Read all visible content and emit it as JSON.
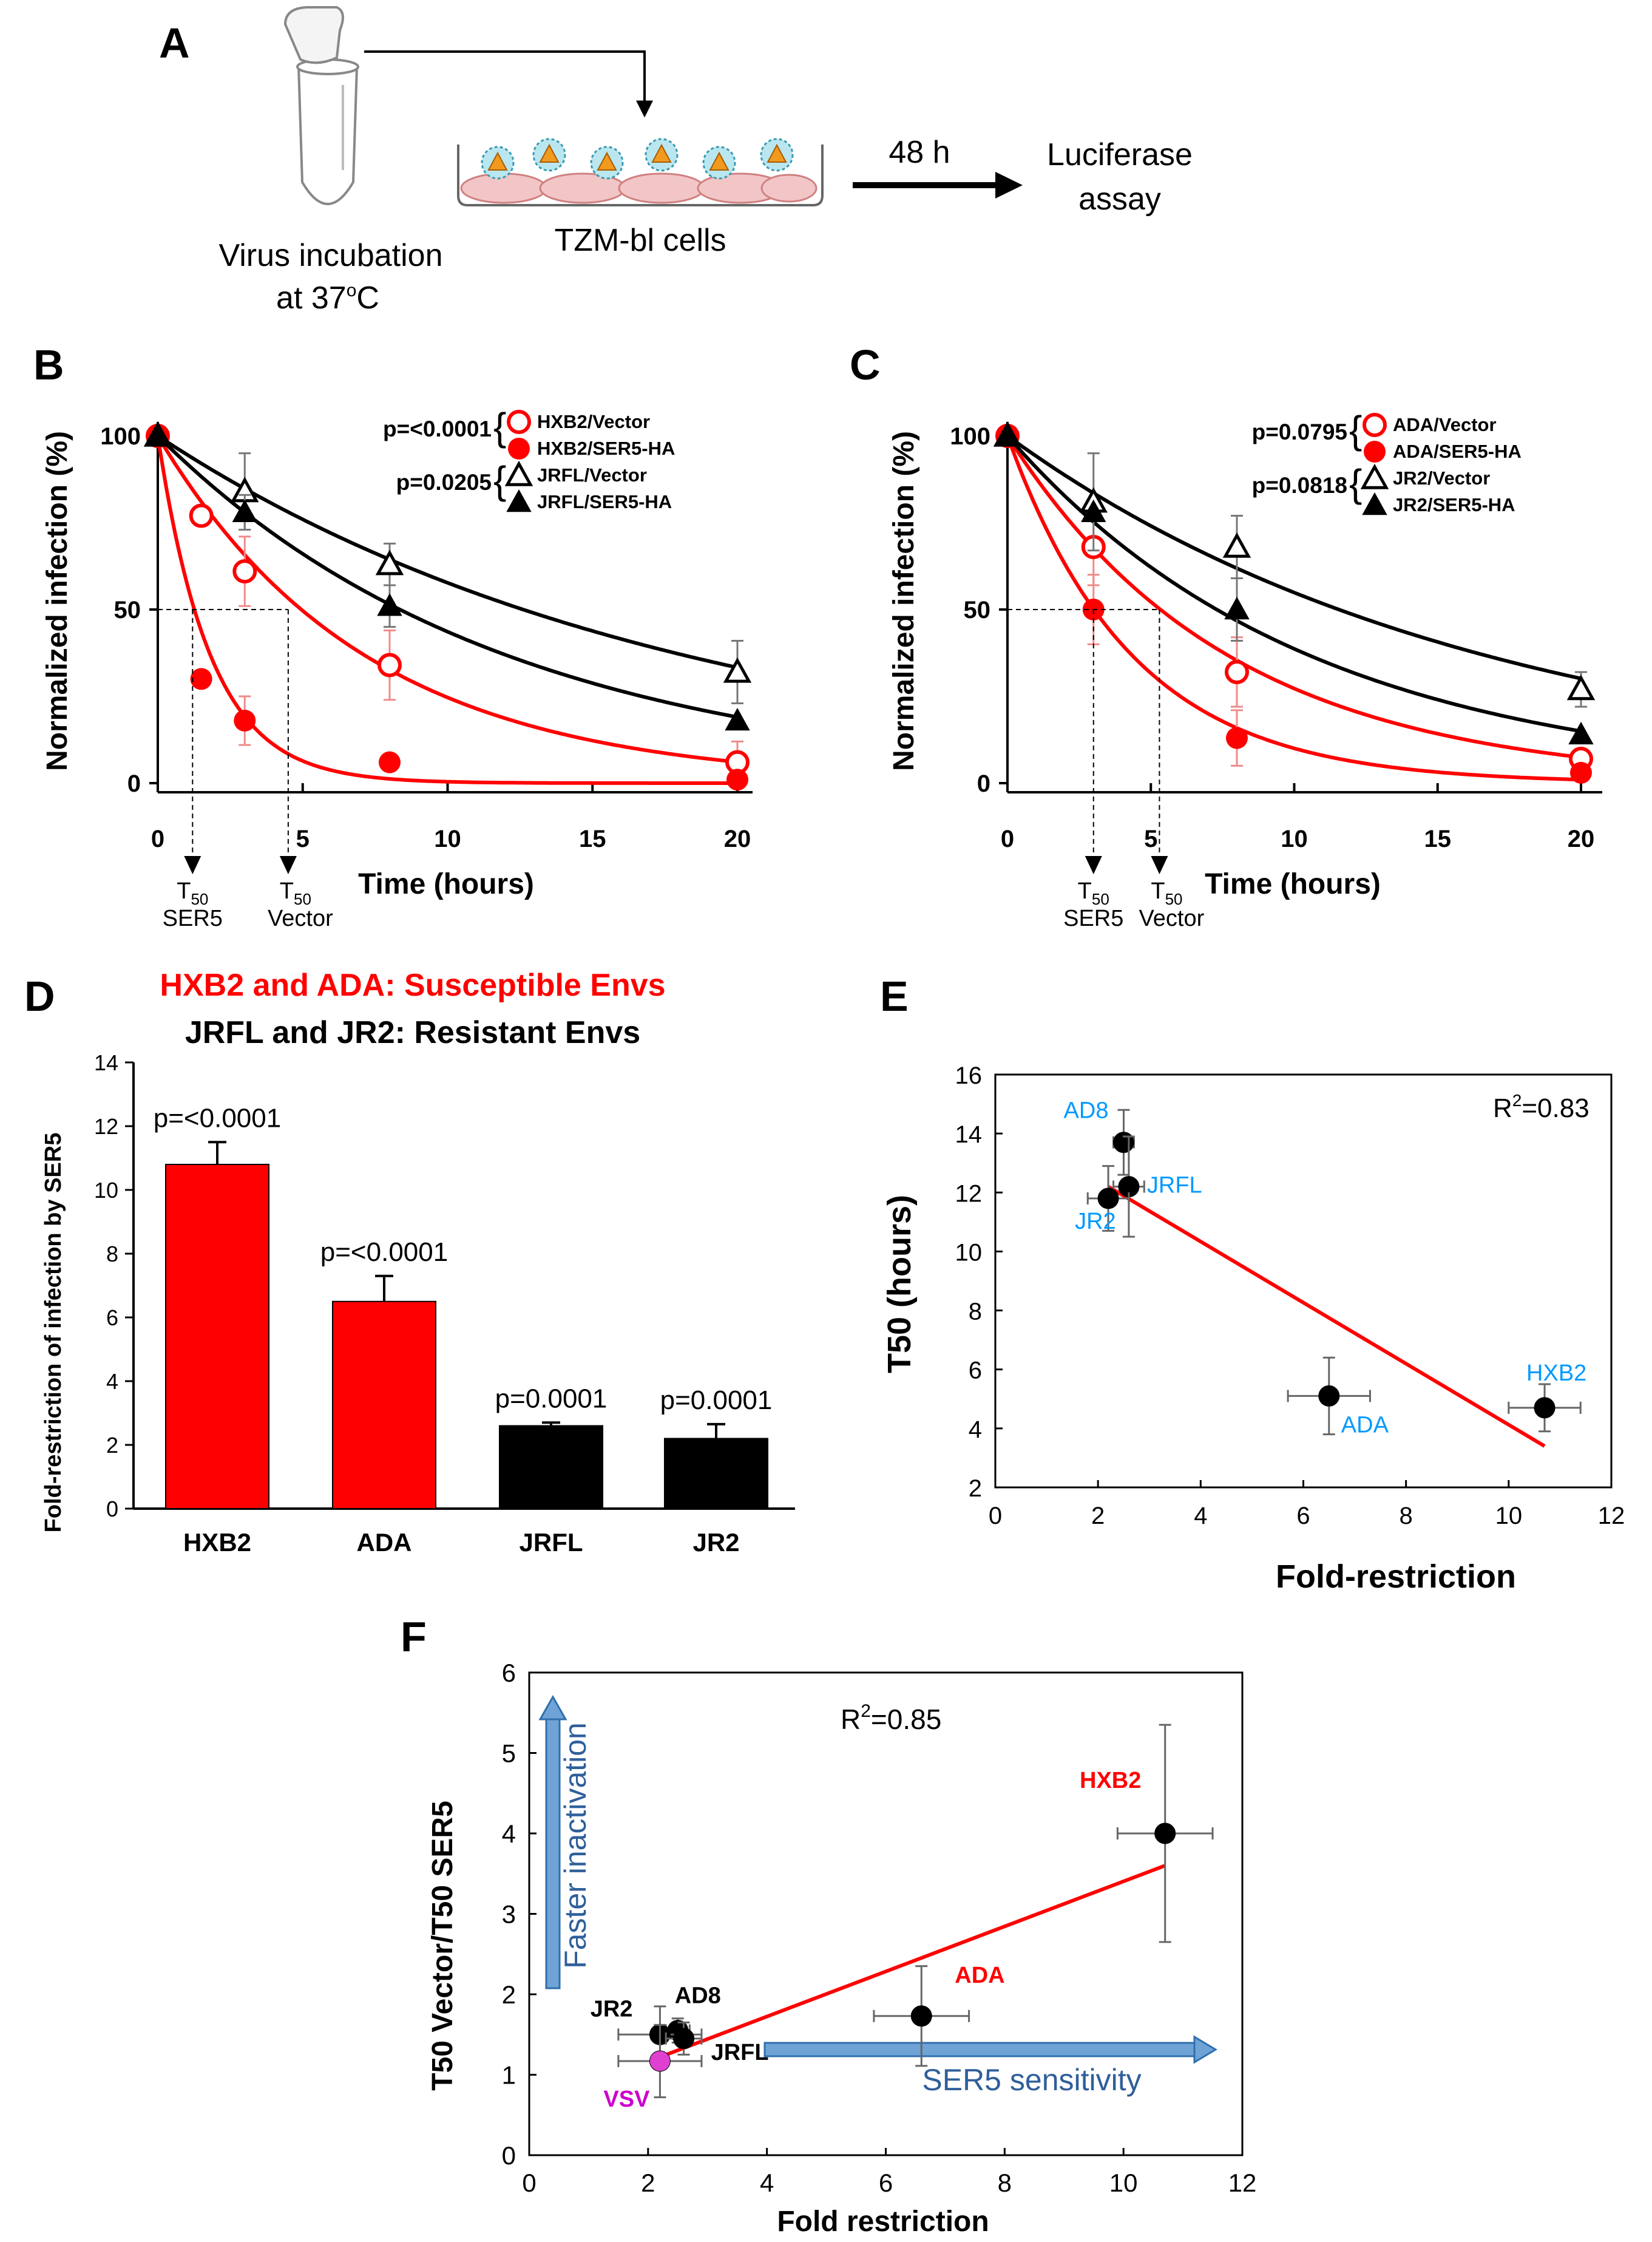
{
  "panelA": {
    "label": "A",
    "virus_label_1": "Virus incubation",
    "virus_label_2": "at 37",
    "virus_label_sup": "o",
    "virus_label_end": "C",
    "cells_label": "TZM-bl cells",
    "time_label": "48 h",
    "assay_1": "Luciferase",
    "assay_2": "assay"
  },
  "chart_data": [
    {
      "id": "B",
      "type": "scatter",
      "label": "B",
      "xlabel": "Time (hours)",
      "ylabel": "Normalized infection (%)",
      "xlim": [
        0,
        20
      ],
      "ylim": [
        0,
        100
      ],
      "xticks": [
        "0",
        "5",
        "10",
        "15",
        "20"
      ],
      "yticks": [
        "0",
        "50",
        "100"
      ],
      "t50_ser5": [
        "T",
        "50",
        "SER5"
      ],
      "t50_vector": [
        "T",
        "50",
        "Vector"
      ],
      "t50_values": {
        "ser5": 1.2,
        "vector": 4.5
      },
      "pvalues": [
        "p=<0.0001",
        "p=0.0205"
      ],
      "series": [
        {
          "name": "HXB2/Vector",
          "color": "#ff0000",
          "marker": "circle-open",
          "x": [
            0,
            1.5,
            3,
            8,
            20
          ],
          "y": [
            100,
            77,
            61,
            34,
            6
          ],
          "err": [
            0,
            0,
            10,
            10,
            6
          ],
          "decay": 0.14
        },
        {
          "name": "HXB2/SER5-HA",
          "color": "#ff0000",
          "marker": "circle-filled",
          "x": [
            0,
            1.5,
            3,
            8,
            20
          ],
          "y": [
            100,
            30,
            18,
            6,
            1
          ],
          "err": [
            0,
            0,
            7,
            0,
            0
          ],
          "decay": 0.55
        },
        {
          "name": "JRFL/Vector",
          "color": "#000000",
          "marker": "triangle-open",
          "x": [
            0,
            3,
            8,
            20
          ],
          "y": [
            100,
            84,
            63,
            32
          ],
          "err": [
            0,
            11,
            6,
            9
          ],
          "decay": 0.055
        },
        {
          "name": "JRFL/SER5-HA",
          "color": "#000000",
          "marker": "triangle-filled",
          "x": [
            0,
            3,
            8,
            20
          ],
          "y": [
            100,
            78,
            51,
            18
          ],
          "err": [
            0,
            5,
            6,
            0
          ],
          "decay": 0.083
        }
      ]
    },
    {
      "id": "C",
      "type": "scatter",
      "label": "C",
      "xlabel": "Time (hours)",
      "ylabel": "Normalized infection (%)",
      "xlim": [
        0,
        20
      ],
      "ylim": [
        0,
        100
      ],
      "xticks": [
        "0",
        "5",
        "10",
        "15",
        "20"
      ],
      "yticks": [
        "0",
        "50",
        "100"
      ],
      "t50_ser5": [
        "T",
        "50",
        "SER5"
      ],
      "t50_vector": [
        "T",
        "50",
        "Vector"
      ],
      "t50_values": {
        "ser5": 3,
        "vector": 5.3
      },
      "pvalues": [
        "p=0.0795",
        "p=0.0818"
      ],
      "series": [
        {
          "name": "ADA/Vector",
          "color": "#ff0000",
          "marker": "circle-open",
          "x": [
            0,
            3,
            8,
            20
          ],
          "y": [
            100,
            68,
            32,
            7
          ],
          "err": [
            0,
            11,
            10,
            0
          ],
          "decay": 0.13
        },
        {
          "name": "ADA/SER5-HA",
          "color": "#ff0000",
          "marker": "circle-filled",
          "x": [
            0,
            3,
            8,
            20
          ],
          "y": [
            100,
            50,
            13,
            3
          ],
          "err": [
            0,
            10,
            8,
            0
          ],
          "decay": 0.23
        },
        {
          "name": "JR2/Vector",
          "color": "#000000",
          "marker": "triangle-open",
          "x": [
            0,
            3,
            8,
            20
          ],
          "y": [
            100,
            81,
            68,
            27
          ],
          "err": [
            0,
            14,
            9,
            5
          ],
          "decay": 0.06
        },
        {
          "name": "JR2/SER5-HA",
          "color": "#000000",
          "marker": "triangle-filled",
          "x": [
            0,
            3,
            8,
            20
          ],
          "y": [
            100,
            78,
            50,
            14
          ],
          "err": [
            0,
            0,
            9,
            0
          ],
          "decay": 0.095
        }
      ]
    },
    {
      "id": "D",
      "type": "bar",
      "label": "D",
      "title_red": "HXB2 and ADA:  Susceptible  Envs",
      "title_black": "JRFL and JR2: Resistant  Envs",
      "ylabel": "Fold-restriction of infection by SER5",
      "ylim": [
        0,
        14
      ],
      "yticks": [
        "0",
        "2",
        "4",
        "6",
        "8",
        "10",
        "12",
        "14"
      ],
      "categories": [
        "HXB2",
        "ADA",
        "JRFL",
        "JR2"
      ],
      "values": [
        10.8,
        6.5,
        2.6,
        2.2
      ],
      "errors": [
        0.7,
        0.8,
        0.1,
        0.45
      ],
      "colors": [
        "#ff0000",
        "#ff0000",
        "#000000",
        "#000000"
      ],
      "pvalues": [
        "p=<0.0001",
        "p=<0.0001",
        "p=0.0001",
        "p=0.0001"
      ]
    },
    {
      "id": "E",
      "type": "scatter",
      "label": "E",
      "xlabel": "Fold-restriction",
      "ylabel": "T50 (hours)",
      "xlim": [
        0,
        12
      ],
      "ylim": [
        2,
        16
      ],
      "xticks": [
        "0",
        "2",
        "4",
        "6",
        "8",
        "10",
        "12"
      ],
      "yticks": [
        "2",
        "4",
        "6",
        "8",
        "10",
        "12",
        "14",
        "16"
      ],
      "r2": [
        "R",
        "2",
        "=0.83"
      ],
      "points": [
        {
          "name": "AD8",
          "x": 2.5,
          "y": 13.7,
          "xerr": 0.2,
          "yerr": 1.1
        },
        {
          "name": "JRFL",
          "x": 2.6,
          "y": 12.2,
          "xerr": 0.3,
          "yerr": 1.7
        },
        {
          "name": "JR2",
          "x": 2.2,
          "y": 11.8,
          "xerr": 0.4,
          "yerr": 1.1
        },
        {
          "name": "ADA",
          "x": 6.5,
          "y": 5.1,
          "xerr": 0.8,
          "yerr": 1.3
        },
        {
          "name": "HXB2",
          "x": 10.7,
          "y": 4.7,
          "xerr": 0.7,
          "yerr": 0.8
        }
      ],
      "fit": {
        "x": [
          2.2,
          10.7
        ],
        "y": [
          12.2,
          3.4
        ]
      },
      "label_color": "#0099ff"
    },
    {
      "id": "F",
      "type": "scatter",
      "label": "F",
      "xlabel": "Fold restriction",
      "ylabel": "T50 Vector/T50 SER5",
      "xlim": [
        0,
        12
      ],
      "ylim": [
        0,
        6
      ],
      "xticks": [
        "0",
        "2",
        "4",
        "6",
        "8",
        "10",
        "12"
      ],
      "yticks": [
        "0",
        "1",
        "2",
        "3",
        "4",
        "5",
        "6"
      ],
      "r2": [
        "R",
        "2",
        "=0.85"
      ],
      "points": [
        {
          "name": "HXB2",
          "x": 10.7,
          "y": 4.0,
          "xerr": 0.8,
          "yerr": 1.35,
          "color": "#000000",
          "label_color": "#ff0000"
        },
        {
          "name": "ADA",
          "x": 6.6,
          "y": 1.73,
          "xerr": 0.8,
          "yerr": 0.62,
          "color": "#000000",
          "label_color": "#ff0000"
        },
        {
          "name": "AD8",
          "x": 2.5,
          "y": 1.55,
          "xerr": 0.2,
          "yerr": 0.15,
          "color": "#000000",
          "label_color": "#000000"
        },
        {
          "name": "JR2",
          "x": 2.2,
          "y": 1.5,
          "xerr": 0.7,
          "yerr": 0.35,
          "color": "#000000",
          "label_color": "#000000"
        },
        {
          "name": "JRFL",
          "x": 2.6,
          "y": 1.45,
          "xerr": 0.3,
          "yerr": 0.2,
          "color": "#000000",
          "label_color": "#000000"
        },
        {
          "name": "VSV",
          "x": 2.2,
          "y": 1.17,
          "xerr": 0.7,
          "yerr": 0.45,
          "color": "#e040d0",
          "label_color": "#cc00cc"
        }
      ],
      "fit": {
        "x": [
          2.2,
          10.7
        ],
        "y": [
          1.22,
          3.6
        ]
      },
      "arrow_up_label": "Faster inactivation",
      "arrow_right_label": "SER5 sensitivity"
    }
  ]
}
